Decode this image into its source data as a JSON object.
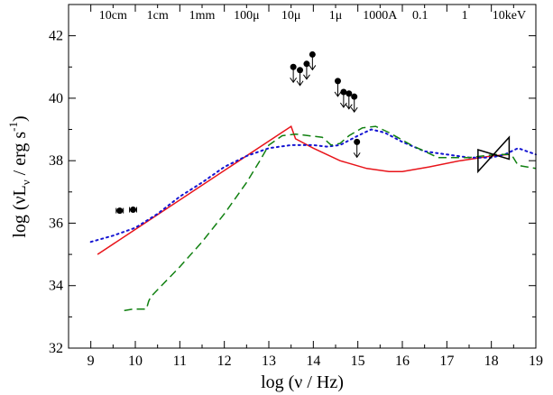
{
  "chart_data": {
    "type": "line",
    "title": "",
    "xlabel": "log (ν / Hz)",
    "ylabel": "log (νL_ν / erg s^-1)",
    "ylabel_parts": {
      "main": "log (νL",
      "sub": "ν",
      "mid": " / erg s",
      "sup": "-1",
      "end": ")"
    },
    "xlim": [
      8.5,
      19
    ],
    "ylim": [
      32,
      43
    ],
    "x_ticks": [
      9,
      10,
      11,
      12,
      13,
      14,
      15,
      16,
      17,
      18,
      19
    ],
    "y_ticks": [
      32,
      34,
      36,
      38,
      40,
      42
    ],
    "top_axis": {
      "labels": [
        {
          "text": "10cm",
          "x": 9.5
        },
        {
          "text": "1cm",
          "x": 10.5
        },
        {
          "text": "1mm",
          "x": 11.5
        },
        {
          "text": "100μ",
          "x": 12.5
        },
        {
          "text": "10μ",
          "x": 13.5
        },
        {
          "text": "1μ",
          "x": 14.5
        },
        {
          "text": "1000A",
          "x": 15.5
        },
        {
          "text": "0.1",
          "x": 16.4
        },
        {
          "text": "1",
          "x": 17.4
        },
        {
          "text": "10keV",
          "x": 18.4
        }
      ]
    },
    "grid": false,
    "series": [
      {
        "color": "#e8141a",
        "style": "solid",
        "x": [
          9.15,
          13.5,
          13.6,
          14.0,
          14.6,
          15.2,
          15.7,
          16.0,
          16.6,
          17.3,
          18.0,
          18.4
        ],
        "y": [
          35.0,
          39.1,
          38.7,
          38.4,
          38.0,
          37.75,
          37.65,
          37.65,
          37.8,
          38.0,
          38.15,
          38.2
        ]
      },
      {
        "color": "#1414d2",
        "style": "dotted",
        "x": [
          9.0,
          9.5,
          10.0,
          10.5,
          11.0,
          11.5,
          12.0,
          12.5,
          13.0,
          13.5,
          14.0,
          14.3,
          14.6,
          15.0,
          15.3,
          15.6,
          16.0,
          16.5,
          17.0,
          17.5,
          18.0,
          18.3,
          18.6,
          18.8,
          19.0
        ],
        "y": [
          35.4,
          35.6,
          35.85,
          36.3,
          36.85,
          37.3,
          37.8,
          38.15,
          38.4,
          38.5,
          38.5,
          38.45,
          38.5,
          38.8,
          39.0,
          38.9,
          38.6,
          38.3,
          38.2,
          38.1,
          38.1,
          38.2,
          38.4,
          38.3,
          38.2
        ]
      },
      {
        "color": "#108010",
        "style": "dashed",
        "x": [
          9.75,
          9.95,
          10.25,
          10.3,
          10.35,
          11.0,
          11.5,
          12.0,
          12.5,
          12.8,
          13.0,
          13.3,
          13.6,
          13.9,
          14.2,
          14.4,
          14.6,
          14.8,
          15.1,
          15.4,
          15.7,
          16.2,
          16.8,
          17.5,
          18.1,
          18.45,
          18.6,
          19.0
        ],
        "y": [
          33.2,
          33.25,
          33.25,
          33.5,
          33.65,
          34.6,
          35.4,
          36.3,
          37.3,
          38.0,
          38.5,
          38.8,
          38.85,
          38.8,
          38.75,
          38.5,
          38.55,
          38.8,
          39.05,
          39.1,
          38.9,
          38.5,
          38.1,
          38.1,
          38.2,
          38.2,
          37.85,
          37.75
        ]
      }
    ],
    "detections": [
      {
        "x": 9.65,
        "y": 36.4,
        "x_err": 0.08
      },
      {
        "x": 9.95,
        "y": 36.43,
        "x_err": 0.08
      }
    ],
    "upper_limits": [
      {
        "x": 13.55,
        "y": 41.0
      },
      {
        "x": 13.7,
        "y": 40.9
      },
      {
        "x": 13.85,
        "y": 41.1
      },
      {
        "x": 13.98,
        "y": 41.4
      },
      {
        "x": 14.55,
        "y": 40.55
      },
      {
        "x": 14.68,
        "y": 40.2
      },
      {
        "x": 14.8,
        "y": 40.15
      },
      {
        "x": 14.92,
        "y": 40.05
      },
      {
        "x": 14.98,
        "y": 38.6
      }
    ],
    "bowtie": {
      "x_range": [
        17.7,
        18.4
      ],
      "left_y": [
        37.65,
        38.35
      ],
      "right_y": [
        38.75,
        38.05
      ]
    },
    "bowtie_color": "#000000",
    "points_color": "#000000"
  }
}
